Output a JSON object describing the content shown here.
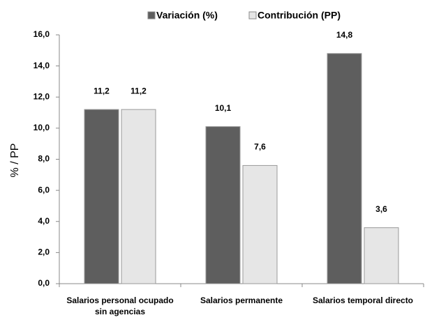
{
  "chart_data": {
    "type": "bar",
    "categories": [
      "Salarios personal ocupado sin agencias",
      "Salarios permanente",
      "Salarios temporal directo"
    ],
    "series": [
      {
        "name": "Variación (%)",
        "color": "#5e5e5e",
        "values": [
          11.2,
          10.1,
          14.8
        ],
        "value_labels": [
          "11,2",
          "10,1",
          "14,8"
        ]
      },
      {
        "name": "Contribución (PP)",
        "color": "#e6e6e6",
        "values": [
          11.2,
          7.6,
          3.6
        ],
        "value_labels": [
          "11,2",
          "7,6",
          "3,6"
        ]
      }
    ],
    "y_label": "% / PP",
    "ylim": [
      0,
      16
    ],
    "yticks": [
      {
        "value": 0,
        "label": "0,0"
      },
      {
        "value": 2,
        "label": "2,0"
      },
      {
        "value": 4,
        "label": "4,0"
      },
      {
        "value": 6,
        "label": "6,0"
      },
      {
        "value": 8,
        "label": "8,0"
      },
      {
        "value": 10,
        "label": "10,0"
      },
      {
        "value": 12,
        "label": "12,0"
      },
      {
        "value": 14,
        "label": "14,0"
      },
      {
        "value": 16,
        "label": "16,0"
      }
    ],
    "legend": "top",
    "grid": false
  }
}
